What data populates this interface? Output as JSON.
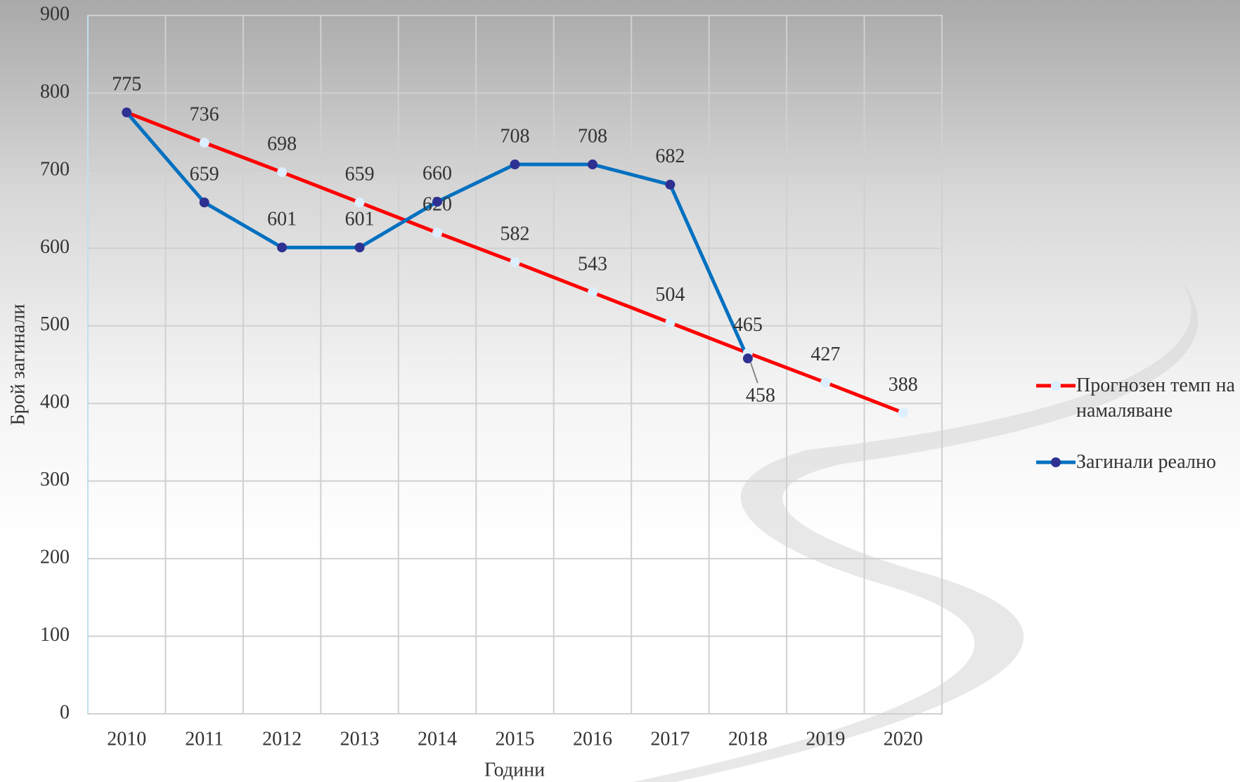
{
  "chart_data": {
    "type": "line",
    "x_label": "Години",
    "y_label": "Брой загинали",
    "categories": [
      "2010",
      "2011",
      "2012",
      "2013",
      "2014",
      "2015",
      "2016",
      "2017",
      "2018",
      "2019",
      "2020"
    ],
    "series": [
      {
        "name": "Прогнозен темп на намаляване",
        "color": "#ff0000",
        "marker_color": "#dcefff",
        "values": [
          775,
          736,
          698,
          659,
          620,
          582,
          543,
          504,
          465,
          427,
          388
        ]
      },
      {
        "name": "Загинали реално",
        "color": "#0070c0",
        "marker_color": "#2e3192",
        "values": [
          775,
          659,
          601,
          601,
          660,
          708,
          708,
          682,
          458,
          null,
          null
        ]
      }
    ],
    "ylim": [
      0,
      900
    ],
    "yticks": [
      0,
      100,
      200,
      300,
      400,
      500,
      600,
      700,
      800,
      900
    ],
    "grid": true,
    "legend": "right"
  }
}
